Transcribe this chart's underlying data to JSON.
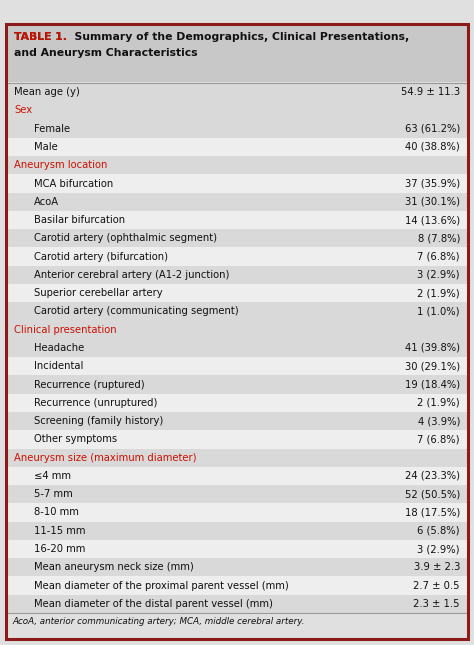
{
  "title_label": "TABLE 1.",
  "title_rest_line1": "  Summary of the Demographics, Clinical Presentations,",
  "title_line2": "and Aneurysm Characteristics",
  "rows": [
    {
      "label": "Mean age (y)",
      "value": "54.9 ± 11.3",
      "type": "normal",
      "indent": 0
    },
    {
      "label": "Sex",
      "value": "",
      "type": "header",
      "indent": 0
    },
    {
      "label": "Female",
      "value": "63 (61.2%)",
      "type": "normal",
      "indent": 1
    },
    {
      "label": "Male",
      "value": "40 (38.8%)",
      "type": "normal",
      "indent": 1
    },
    {
      "label": "Aneurysm location",
      "value": "",
      "type": "header",
      "indent": 0
    },
    {
      "label": "MCA bifurcation",
      "value": "37 (35.9%)",
      "type": "normal",
      "indent": 1
    },
    {
      "label": "AcoA",
      "value": "31 (30.1%)",
      "type": "normal",
      "indent": 1
    },
    {
      "label": "Basilar bifurcation",
      "value": "14 (13.6%)",
      "type": "normal",
      "indent": 1
    },
    {
      "label": "Carotid artery (ophthalmic segment)",
      "value": "8 (7.8%)",
      "type": "normal",
      "indent": 1
    },
    {
      "label": "Carotid artery (bifurcation)",
      "value": "7 (6.8%)",
      "type": "normal",
      "indent": 1
    },
    {
      "label": "Anterior cerebral artery (A1-2 junction)",
      "value": "3 (2.9%)",
      "type": "normal",
      "indent": 1
    },
    {
      "label": "Superior cerebellar artery",
      "value": "2 (1.9%)",
      "type": "normal",
      "indent": 1
    },
    {
      "label": "Carotid artery (communicating segment)",
      "value": "1 (1.0%)",
      "type": "normal",
      "indent": 1
    },
    {
      "label": "Clinical presentation",
      "value": "",
      "type": "header",
      "indent": 0
    },
    {
      "label": "Headache",
      "value": "41 (39.8%)",
      "type": "normal",
      "indent": 1
    },
    {
      "label": "Incidental",
      "value": "30 (29.1%)",
      "type": "normal",
      "indent": 1
    },
    {
      "label": "Recurrence (ruptured)",
      "value": "19 (18.4%)",
      "type": "normal",
      "indent": 1
    },
    {
      "label": "Recurrence (unruptured)",
      "value": "2 (1.9%)",
      "type": "normal",
      "indent": 1
    },
    {
      "label": "Screening (family history)",
      "value": "4 (3.9%)",
      "type": "normal",
      "indent": 1
    },
    {
      "label": "Other symptoms",
      "value": "7 (6.8%)",
      "type": "normal",
      "indent": 1
    },
    {
      "label": "Aneurysm size (maximum diameter)",
      "value": "",
      "type": "header",
      "indent": 0
    },
    {
      "label": "≤4 mm",
      "value": "24 (23.3%)",
      "type": "normal",
      "indent": 1
    },
    {
      "label": "5-7 mm",
      "value": "52 (50.5%)",
      "type": "normal",
      "indent": 1
    },
    {
      "label": "8-10 mm",
      "value": "18 (17.5%)",
      "type": "normal",
      "indent": 1
    },
    {
      "label": "11-15 mm",
      "value": "6 (5.8%)",
      "type": "normal",
      "indent": 1
    },
    {
      "label": "16-20 mm",
      "value": "3 (2.9%)",
      "type": "normal",
      "indent": 1
    },
    {
      "label": "Mean aneurysm neck size (mm)",
      "value": "3.9 ± 2.3",
      "type": "normal",
      "indent": 1
    },
    {
      "label": "Mean diameter of the proximal parent vessel (mm)",
      "value": "2.7 ± 0.5",
      "type": "normal",
      "indent": 1
    },
    {
      "label": "Mean diameter of the distal parent vessel (mm)",
      "value": "2.3 ± 1.5",
      "type": "normal",
      "indent": 1
    }
  ],
  "footnote": "AcoA, anterior communicating artery; MCA, middle cerebral artery.",
  "red_color": "#cc1100",
  "border_color": "#8b1a1a",
  "text_color": "#111111",
  "title_bg": "#c8c8c8",
  "row_bg_dark": "#d9d9d9",
  "row_bg_light": "#eeeeee",
  "header_bg": "#d9d9d9",
  "fig_bg": "#e0e0e0"
}
